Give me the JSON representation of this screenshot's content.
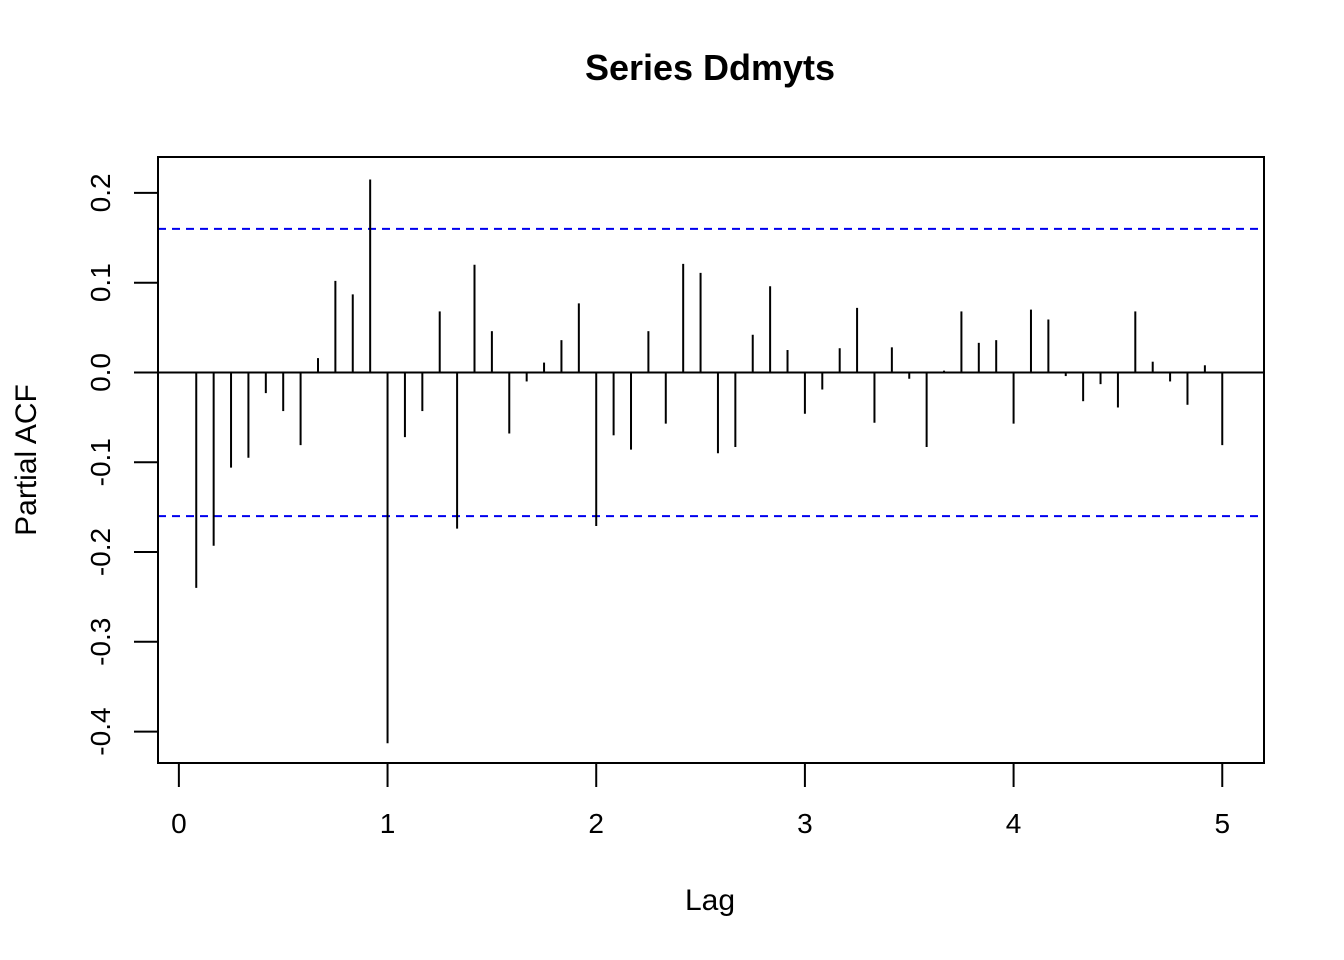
{
  "chart_data": {
    "type": "bar",
    "title": "Series  Ddmyts",
    "xlabel": "Lag",
    "ylabel": "Partial ACF",
    "xlim": [
      -0.1,
      5.2
    ],
    "ylim": [
      -0.435,
      0.24
    ],
    "x_ticks": [
      0,
      1,
      2,
      3,
      4,
      5
    ],
    "x_tick_labels": [
      "0",
      "1",
      "2",
      "3",
      "4",
      "5"
    ],
    "y_ticks": [
      -0.4,
      -0.3,
      -0.2,
      -0.1,
      0.0,
      0.1,
      0.2
    ],
    "y_tick_labels": [
      "-0.4",
      "-0.3",
      "-0.2",
      "-0.1",
      "0.0",
      "0.1",
      "0.2"
    ],
    "confidence_bounds": [
      0.16,
      -0.16
    ],
    "bound_color": "#0000ee",
    "bar_color": "#000000",
    "grid": false,
    "lags": [
      0.0833,
      0.1667,
      0.25,
      0.3333,
      0.4167,
      0.5,
      0.5833,
      0.6667,
      0.75,
      0.8333,
      0.9167,
      1.0,
      1.0833,
      1.1667,
      1.25,
      1.3333,
      1.4167,
      1.5,
      1.5833,
      1.6667,
      1.75,
      1.8333,
      1.9167,
      2.0,
      2.0833,
      2.1667,
      2.25,
      2.3333,
      2.4167,
      2.5,
      2.5833,
      2.6667,
      2.75,
      2.8333,
      2.9167,
      3.0,
      3.0833,
      3.1667,
      3.25,
      3.3333,
      3.4167,
      3.5,
      3.5833,
      3.6667,
      3.75,
      3.8333,
      3.9167,
      4.0,
      4.0833,
      4.1667,
      4.25,
      4.3333,
      4.4167,
      4.5,
      4.5833,
      4.6667,
      4.75,
      4.8333,
      4.9167,
      5.0
    ],
    "values": [
      -0.24,
      -0.193,
      -0.106,
      -0.095,
      -0.023,
      -0.043,
      -0.081,
      0.016,
      0.102,
      0.087,
      0.215,
      -0.413,
      -0.072,
      -0.043,
      0.068,
      -0.174,
      0.12,
      0.046,
      -0.068,
      -0.01,
      0.011,
      0.036,
      0.077,
      -0.171,
      -0.07,
      -0.086,
      0.046,
      -0.057,
      0.121,
      0.111,
      -0.09,
      -0.083,
      0.042,
      0.096,
      0.025,
      -0.046,
      -0.019,
      0.027,
      0.072,
      -0.056,
      0.028,
      -0.007,
      -0.083,
      0.002,
      0.068,
      0.033,
      0.036,
      -0.057,
      0.07,
      0.059,
      -0.004,
      -0.032,
      -0.013,
      -0.039,
      0.068,
      0.012,
      -0.01,
      -0.036,
      0.008,
      -0.081
    ]
  }
}
